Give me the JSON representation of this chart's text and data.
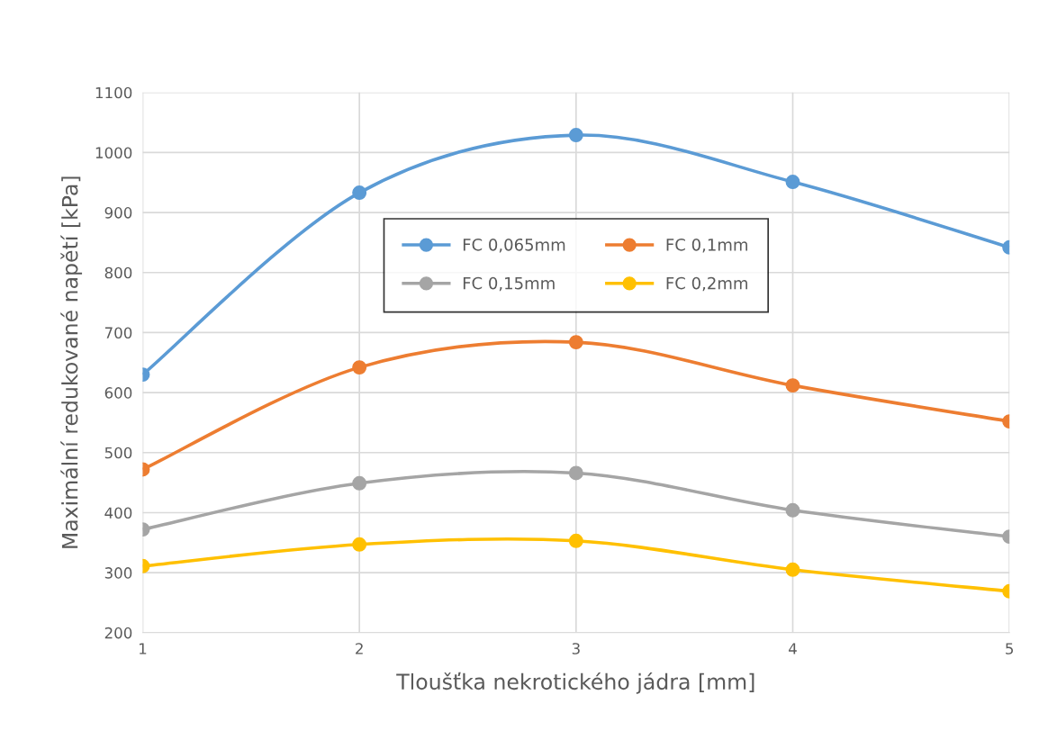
{
  "chart_data": {
    "type": "line",
    "xlabel": "Tloušťka nekrotického jádra [mm]",
    "ylabel": "Maximální redukované napětí [kPa]",
    "x": [
      1,
      2,
      3,
      4,
      5
    ],
    "xlim": [
      1,
      5
    ],
    "xticks": [
      1,
      2,
      3,
      4,
      5
    ],
    "ylim": [
      200,
      1100
    ],
    "yticks": [
      200,
      300,
      400,
      500,
      600,
      700,
      800,
      900,
      1000,
      1100
    ],
    "grid": true,
    "legend": "center",
    "marker": "circle",
    "line_style": "solid",
    "series": [
      {
        "name": "FC 0,065mm",
        "color": "#5b9bd5",
        "values": [
          630,
          933,
          1029,
          951,
          842
        ]
      },
      {
        "name": "FC 0,1mm",
        "color": "#ed7d31",
        "values": [
          472,
          642,
          684,
          612,
          552
        ]
      },
      {
        "name": "FC 0,15mm",
        "color": "#a5a5a5",
        "values": [
          372,
          449,
          466,
          404,
          360
        ]
      },
      {
        "name": "FC 0,2mm",
        "color": "#ffc000",
        "values": [
          311,
          347,
          353,
          305,
          269
        ]
      }
    ]
  }
}
